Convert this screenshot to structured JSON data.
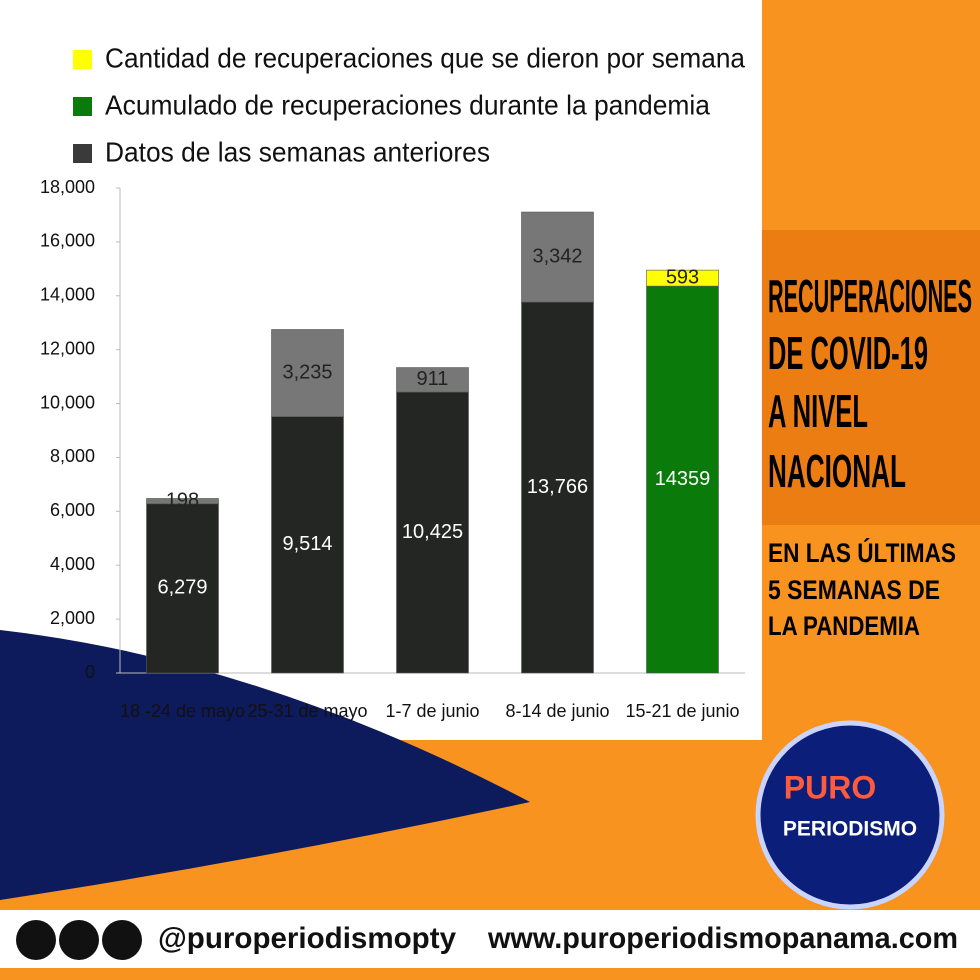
{
  "chart_data": {
    "type": "stacked-bar",
    "title": [
      "RECUPERACIONES",
      "DE COVID-19",
      "A NIVEL",
      "NACIONAL"
    ],
    "subtitle": [
      "EN LAS ÚLTIMAS",
      "5 SEMANAS DE",
      "LA PANDEMIA"
    ],
    "categories": [
      "18 -24 de mayo",
      "25-31 de mayo",
      "1-7 de junio",
      "8-14 de junio",
      "15-21 de junio"
    ],
    "series": [
      {
        "name": "Cantidad de recuperaciones que se dieron por semana",
        "color": "#ffff00",
        "colors": [
          "#777777",
          "#777777",
          "#777777",
          "#777777",
          "#ffff00"
        ],
        "values": [
          198,
          3235,
          911,
          3342,
          593
        ],
        "value_labels": [
          "198",
          "3,235",
          "911",
          "3,342",
          "593"
        ]
      },
      {
        "name": "Acumulado de recuperaciones durante la pandemia",
        "color": "#0a7a0a",
        "values": [
          null,
          null,
          null,
          null,
          14359
        ]
      },
      {
        "name": "Datos de las semanas anteriores",
        "color": "#3a3a3a",
        "colors": [
          "#232623",
          "#232623",
          "#232623",
          "#232623",
          null
        ],
        "values": [
          6279,
          9514,
          10425,
          13766,
          null
        ],
        "value_labels": [
          "6,279",
          "9,514",
          "10,425",
          "13,766",
          null
        ]
      }
    ],
    "ylim": [
      0,
      18000
    ],
    "yticks": [
      0,
      {
        "value": 2000,
        "label": "2,000"
      },
      {
        "value": 4000,
        "label": "4,000"
      },
      {
        "value": 6000,
        "label": "6,000"
      },
      {
        "value": 8000,
        "label": "8,000"
      },
      {
        "value": 10000,
        "label": "10,000"
      },
      {
        "value": 12000,
        "label": "12,000"
      },
      {
        "value": 14000,
        "label": "14,000"
      },
      {
        "value": 16000,
        "label": "16,000"
      },
      {
        "value": 18000,
        "label": "18,000"
      }
    ]
  },
  "logo": [
    "PURO",
    "PERIODISMO"
  ],
  "footer": {
    "handle": "@puroperiodismopty",
    "website": "www.puroperiodismopanama.com"
  }
}
